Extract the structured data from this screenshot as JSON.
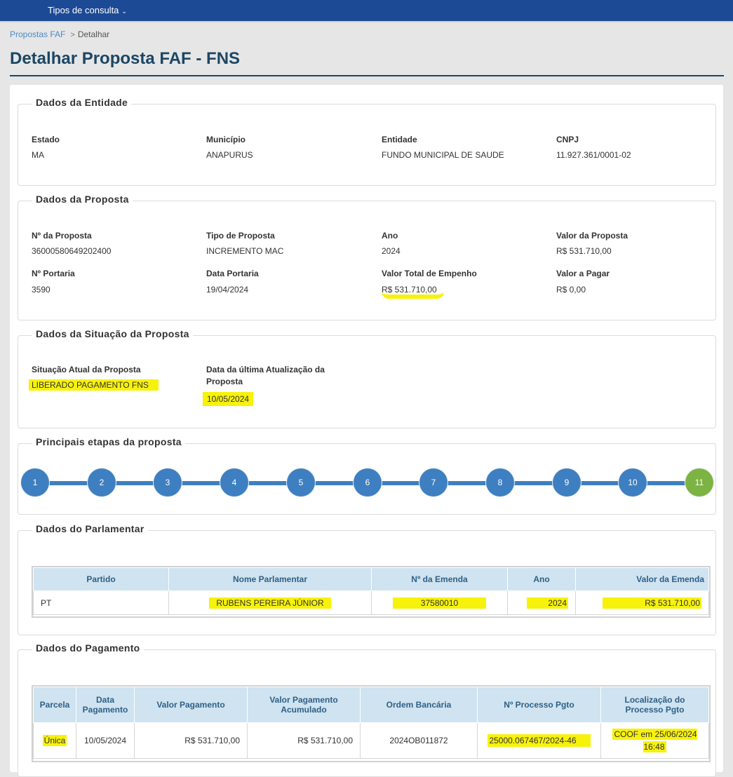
{
  "nav": {
    "menu_label": "Tipos de consulta"
  },
  "breadcrumb": {
    "parent": "Propostas FAF",
    "current": "Detalhar"
  },
  "page_title": "Detalhar Proposta FAF - FNS",
  "entidade": {
    "legend": "Dados da Entidade",
    "fields": [
      {
        "label": "Estado",
        "value": "MA"
      },
      {
        "label": "Município",
        "value": "ANAPURUS"
      },
      {
        "label": "Entidade",
        "value": "FUNDO MUNICIPAL DE SAUDE"
      },
      {
        "label": "CNPJ",
        "value": "11.927.361/0001-02"
      }
    ]
  },
  "proposta": {
    "legend": "Dados da Proposta",
    "fields": [
      {
        "label": "Nº da Proposta",
        "value": "36000580649202400"
      },
      {
        "label": "Tipo de Proposta",
        "value": "INCREMENTO MAC"
      },
      {
        "label": "Ano",
        "value": "2024"
      },
      {
        "label": "Valor da Proposta",
        "value": "R$ 531.710,00"
      },
      {
        "label": "Nº Portaria",
        "value": "3590"
      },
      {
        "label": "Data Portaria",
        "value": "19/04/2024"
      },
      {
        "label": "Valor Total de Empenho",
        "value": "R$ 531.710,00"
      },
      {
        "label": "Valor a Pagar",
        "value": "R$ 0,00"
      }
    ]
  },
  "situacao": {
    "legend": "Dados da Situação da Proposta",
    "atual_label": "Situação Atual da Proposta",
    "atual_value": "LIBERADO PAGAMENTO FNS",
    "data_label": "Data da última Atualização da Proposta",
    "data_value": "10/05/2024"
  },
  "etapas": {
    "legend": "Principais etapas da proposta",
    "steps": [
      "1",
      "2",
      "3",
      "4",
      "5",
      "6",
      "7",
      "8",
      "9",
      "10",
      "11"
    ],
    "current_step": 11
  },
  "parlamentar": {
    "legend": "Dados do Parlamentar",
    "headers": [
      "Partido",
      "Nome Parlamentar",
      "Nº da Emenda",
      "Ano",
      "Valor da Emenda"
    ],
    "rows": [
      [
        "PT",
        "RUBENS PEREIRA JÚNIOR",
        "37580010",
        "2024",
        "R$ 531.710,00"
      ]
    ]
  },
  "pagamento": {
    "legend": "Dados do Pagamento",
    "headers": [
      "Parcela",
      "Data Pagamento",
      "Valor Pagamento",
      "Valor Pagamento Acumulado",
      "Ordem Bancária",
      "Nº Processo Pgto",
      "Localização do Processo Pgto"
    ],
    "rows": [
      [
        "Única",
        "10/05/2024",
        "R$ 531.710,00",
        "R$ 531.710,00",
        "2024OB011872",
        "25000.067467/2024-46",
        "COOF em 25/06/2024 16:48"
      ]
    ]
  },
  "colors": {
    "nav": "#1c4a94",
    "title": "#1c4664",
    "step": "#3e7fc1",
    "step_done": "#7cb342",
    "highlight": "#f7f20a",
    "table_header": "#cfe3f0"
  }
}
